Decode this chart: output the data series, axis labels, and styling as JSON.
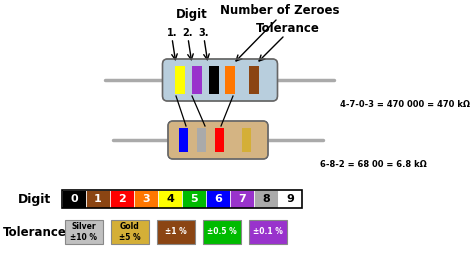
{
  "digit_colors": [
    "#000000",
    "#8B4513",
    "#FF0000",
    "#FF7700",
    "#FFFF00",
    "#00BB00",
    "#0000FF",
    "#9933CC",
    "#AAAAAA",
    "#FFFFFF"
  ],
  "digit_text_colors": [
    "white",
    "white",
    "white",
    "white",
    "black",
    "white",
    "white",
    "white",
    "black",
    "black"
  ],
  "digit_labels": [
    "0",
    "1",
    "2",
    "3",
    "4",
    "5",
    "6",
    "7",
    "8",
    "9"
  ],
  "tolerance_colors": [
    "#C0C0C0",
    "#D4AF37",
    "#8B4513",
    "#00BB00",
    "#9933CC"
  ],
  "tolerance_text_colors": [
    "black",
    "black",
    "white",
    "white",
    "white"
  ],
  "tolerance_labels": [
    "Silver\n±10 %",
    "Gold\n±5 %",
    "±1 %",
    "±0.5 %",
    "±0.1 %"
  ],
  "r1_body_color": "#B8CEDD",
  "r1_bands": [
    [
      0.12,
      "#FFFF00"
    ],
    [
      0.28,
      "#9933CC"
    ],
    [
      0.44,
      "#000000"
    ],
    [
      0.6,
      "#FF7700"
    ],
    [
      0.82,
      "#8B4513"
    ]
  ],
  "r2_body_color": "#D4B483",
  "r2_bands": [
    [
      0.12,
      "#0000FF"
    ],
    [
      0.32,
      "#AAAAAA"
    ],
    [
      0.52,
      "#FF0000"
    ],
    [
      0.82,
      "#D4AF37"
    ]
  ],
  "wire_color": "#AAAAAA",
  "annotation1": "4-7-0-3 = 470 000 = 470 kΩ",
  "annotation2": "6-8-2 = 68 00 = 6.8 kΩ",
  "label_digit": "Digit",
  "label_tolerance": "Tolerance",
  "label_digit_top": "Digit",
  "label_numzeroes": "Number of Zeroes",
  "label_tol": "Tolerance",
  "subarrow_labels": [
    "1.",
    "2.",
    "3."
  ]
}
